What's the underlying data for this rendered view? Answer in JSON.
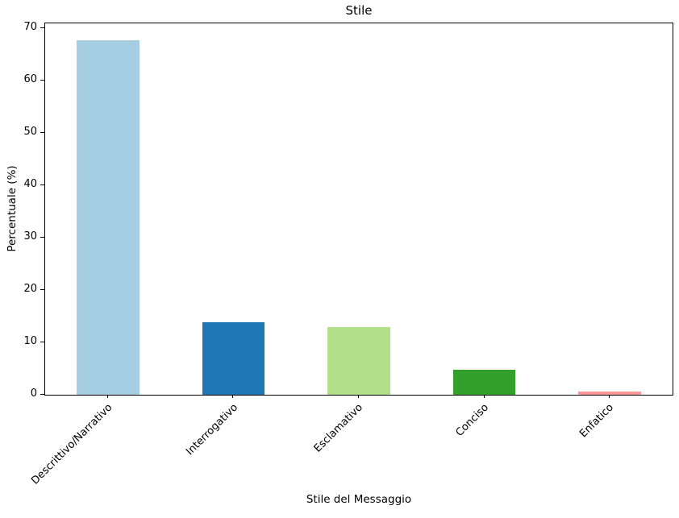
{
  "chart_data": {
    "type": "bar",
    "title": "Stile",
    "xlabel": "Stile del Messaggio",
    "ylabel": "Percentuale (%)",
    "categories": [
      "Descrittivo/Narrativo",
      "Interrogativo",
      "Esclamativo",
      "Conciso",
      "Enfatico"
    ],
    "values": [
      67.8,
      13.9,
      12.9,
      4.8,
      0.6
    ],
    "bar_colors": [
      "#a6cee3",
      "#1f78b4",
      "#b2df8a",
      "#33a02c",
      "#fb9a99"
    ],
    "ylim": [
      0,
      71
    ],
    "yticks": [
      0,
      10,
      20,
      30,
      40,
      50,
      60,
      70
    ],
    "grid": false,
    "legend": false,
    "bar_width_fraction": 0.5,
    "background_color": "#ffffff",
    "axis_color": "#000000",
    "text_color": "#000000"
  }
}
